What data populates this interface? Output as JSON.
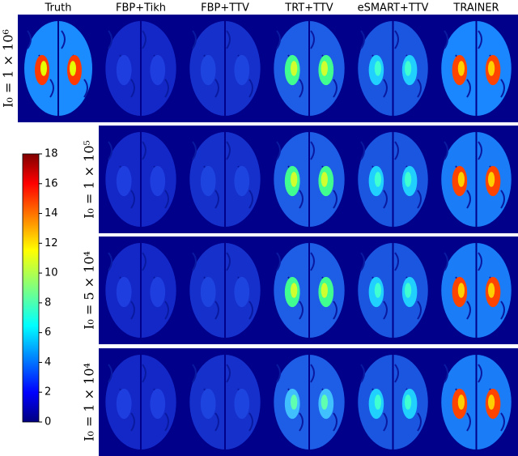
{
  "columns": [
    "Truth",
    "FBP+Tikh",
    "FBP+TTV",
    "TRT+TTV",
    "eSMART+TTV",
    "TRAINER"
  ],
  "rows": [
    "I₀ = 1 × 10⁶",
    "I₀ = 1 × 10⁵",
    "I₀ = 5 × 10⁴",
    "I₀ = 1 × 10⁴"
  ],
  "colorbar": {
    "lim": [
      0,
      18
    ],
    "ticks": [
      0,
      2,
      4,
      6,
      8,
      10,
      12,
      14,
      16,
      18
    ]
  }
}
